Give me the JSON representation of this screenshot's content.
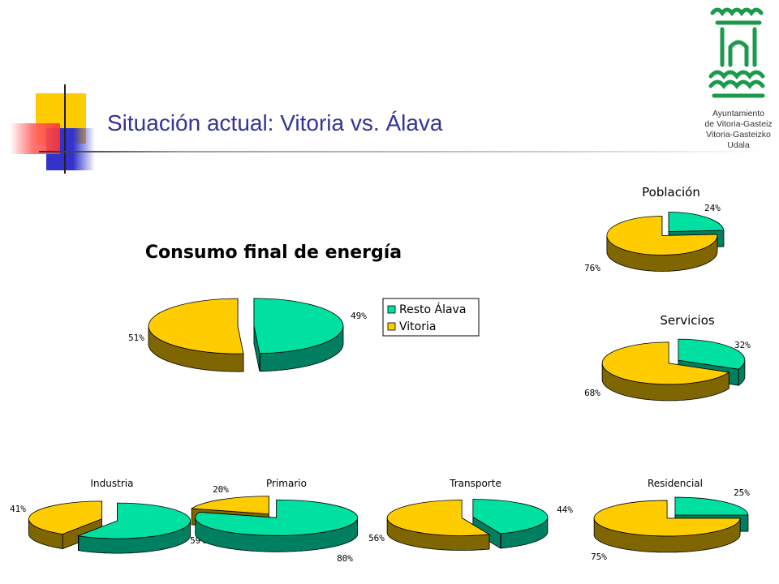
{
  "slide": {
    "title": "Situación actual: Vitoria vs. Álava"
  },
  "logo": {
    "lines": [
      "Ayuntamiento",
      "de Vitoria-Gasteiz",
      "Vitoria-Gasteizko",
      "Udala"
    ]
  },
  "colors": {
    "resto_top": "#00e0a0",
    "resto_side": "#008060",
    "vitoria_top": "#ffcc00",
    "vitoria_side": "#806600",
    "title": "#333399"
  },
  "legend": {
    "items": [
      {
        "label": "Resto Álava",
        "color": "#00e0a0"
      },
      {
        "label": "Vitoria",
        "color": "#ffcc00"
      }
    ]
  },
  "chart_data": [
    {
      "type": "pie",
      "title": "Consumo final de energía",
      "categories": [
        "Resto Álava",
        "Vitoria"
      ],
      "values": [
        49,
        51
      ],
      "labels": [
        "49%",
        "51%"
      ]
    },
    {
      "type": "pie",
      "title": "Población",
      "categories": [
        "Resto Álava",
        "Vitoria"
      ],
      "values": [
        24,
        76
      ],
      "labels": [
        "24%",
        "76%"
      ]
    },
    {
      "type": "pie",
      "title": "Servicios",
      "categories": [
        "Resto Álava",
        "Vitoria"
      ],
      "values": [
        32,
        68
      ],
      "labels": [
        "32%",
        "68%"
      ]
    },
    {
      "type": "pie",
      "title": "Industria",
      "categories": [
        "Resto Álava",
        "Vitoria"
      ],
      "values": [
        59,
        41
      ],
      "labels": [
        "59%",
        "41%"
      ]
    },
    {
      "type": "pie",
      "title": "Primario",
      "categories": [
        "Resto Álava",
        "Vitoria"
      ],
      "values": [
        80,
        20
      ],
      "labels": [
        "80%",
        "20%"
      ]
    },
    {
      "type": "pie",
      "title": "Transporte",
      "categories": [
        "Resto Álava",
        "Vitoria"
      ],
      "values": [
        44,
        56
      ],
      "labels": [
        "44%",
        "56%"
      ]
    },
    {
      "type": "pie",
      "title": "Residencial",
      "categories": [
        "Resto Álava",
        "Vitoria"
      ],
      "values": [
        25,
        75
      ],
      "labels": [
        "25%",
        "75%"
      ]
    }
  ]
}
